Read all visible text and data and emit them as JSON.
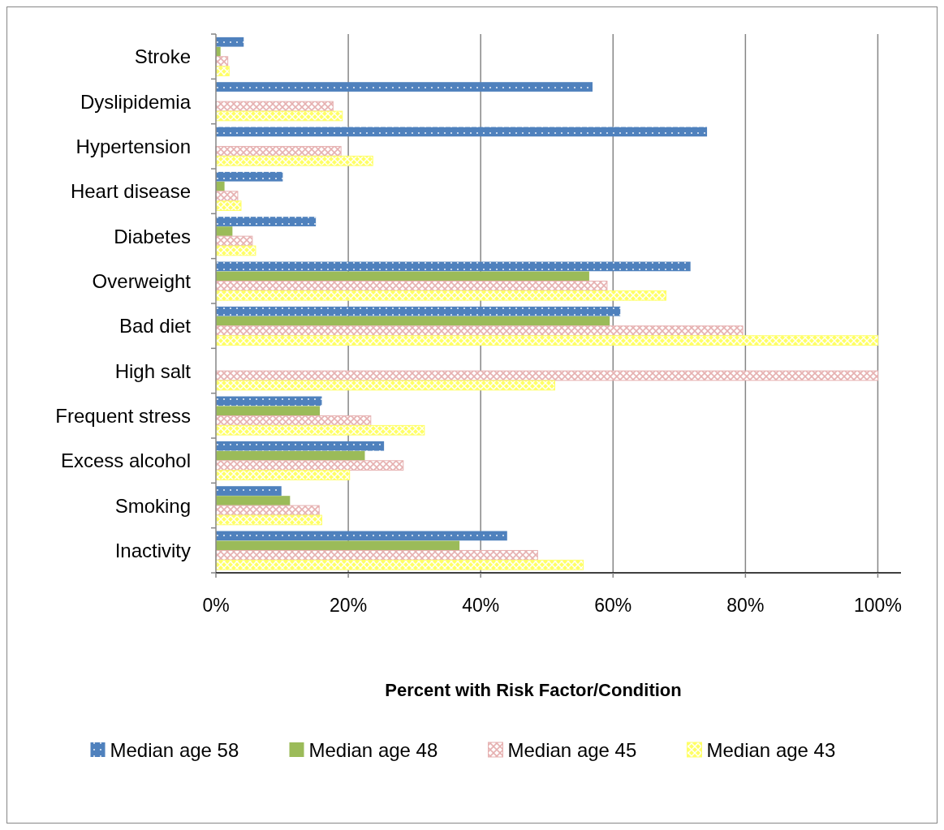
{
  "chart_data": {
    "type": "bar",
    "orientation": "horizontal",
    "xlabel": "Percent with Risk Factor/Condition",
    "categories": [
      "Stroke",
      "Dyslipidemia",
      "Hypertension",
      "Heart disease",
      "Diabetes",
      "Overweight",
      "Bad diet",
      "High salt",
      "Frequent stress",
      "Excess alcohol",
      "Smoking",
      "Inactivity"
    ],
    "series": [
      {
        "name": "Median age 58",
        "color": "#4f81bd",
        "values": [
          4.2,
          56.9,
          74.2,
          10.1,
          15.1,
          71.7,
          61.1,
          null,
          16.0,
          25.4,
          9.9,
          44.0
        ]
      },
      {
        "name": "Median age 48",
        "color": "#9bbb59",
        "values": [
          0.7,
          null,
          null,
          1.3,
          2.5,
          56.4,
          59.5,
          null,
          15.7,
          22.5,
          11.2,
          36.8
        ]
      },
      {
        "name": "Median age 45",
        "color": "#e6b0b0",
        "values": [
          1.8,
          17.7,
          18.9,
          3.3,
          5.5,
          59.1,
          79.6,
          100,
          23.4,
          28.3,
          15.6,
          48.6
        ]
      },
      {
        "name": "Median age 43",
        "color": "#ffff66",
        "values": [
          2.0,
          19.1,
          23.7,
          3.8,
          6.0,
          68.0,
          100,
          51.2,
          31.5,
          20.2,
          16.0,
          55.5
        ]
      }
    ],
    "xlim": [
      0,
      103.5
    ],
    "xticks": [
      {
        "value": 0,
        "label": "0%"
      },
      {
        "value": 20,
        "label": "20%"
      },
      {
        "value": 40,
        "label": "40%"
      },
      {
        "value": 60,
        "label": "60%"
      },
      {
        "value": 80,
        "label": "80%"
      },
      {
        "value": 100,
        "label": "100%"
      }
    ],
    "grid": "x",
    "legend": "bottom"
  }
}
